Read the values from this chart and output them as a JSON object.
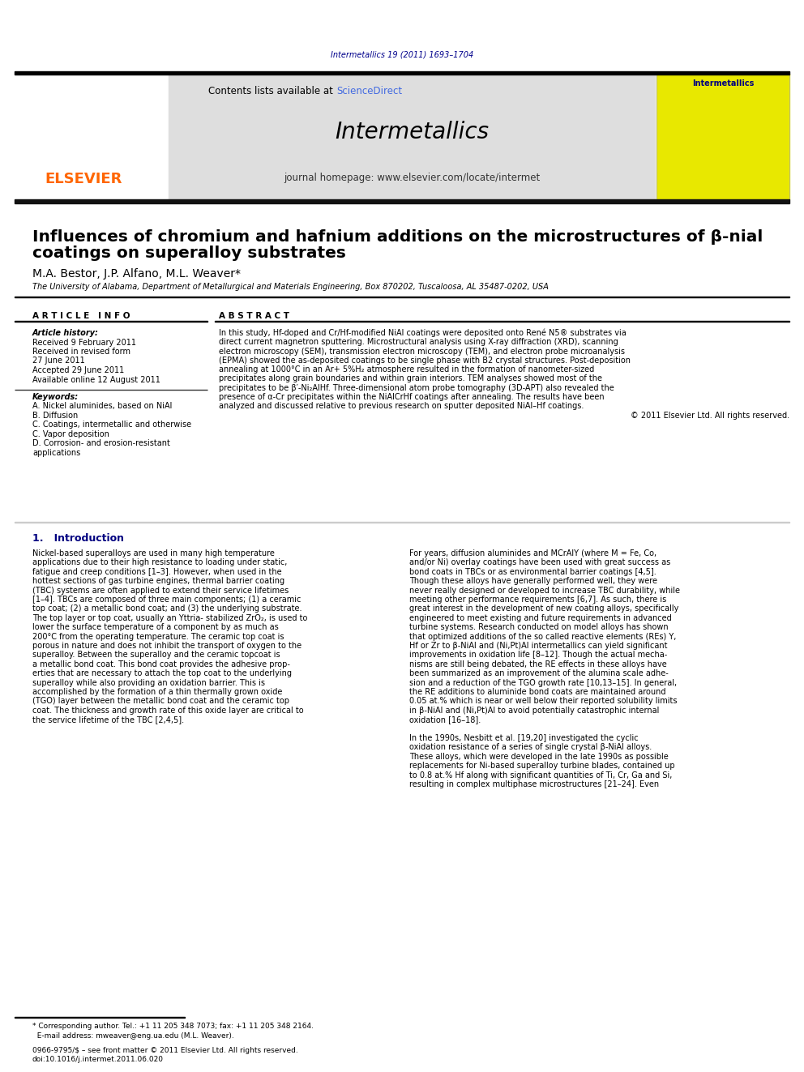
{
  "page_bg": "#ffffff",
  "doi_text": "Intermetallics 19 (2011) 1693–1704",
  "doi_color": "#00008B",
  "header_bg": "#e0e0e0",
  "contents_text": "Contents lists available at ScienceDirect",
  "sciencedirect_color": "#4169E1",
  "journal_name": "Intermetallics",
  "journal_homepage": "journal homepage: www.elsevier.com/locate/intermet",
  "elsevier_color": "#FF6600",
  "title_line1": "Influences of chromium and hafnium additions on the microstructures of β-nial",
  "title_line2": "coatings on superalloy substrates",
  "authors": "M.A. Bestor, J.P. Alfano, M.L. Weaver*",
  "affiliation": "The University of Alabama, Department of Metallurgical and Materials Engineering, Box 870202, Tuscaloosa, AL 35487-0202, USA",
  "article_info_header": "A R T I C L E   I N F O",
  "abstract_header": "A B S T R A C T",
  "article_history_label": "Article history:",
  "received_text": "Received 9 February 2011",
  "received_revised_line1": "Received in revised form",
  "received_revised_line2": "27 June 2011",
  "accepted_text": "Accepted 29 June 2011",
  "available_text": "Available online 12 August 2011",
  "keywords_label": "Keywords:",
  "keyword_a": "A. Nickel aluminides, based on NiAl",
  "keyword_b": "B. Diffusion",
  "keyword_c": "C. Coatings, intermetallic and otherwise",
  "keyword_d": "C. Vapor deposition",
  "keyword_e": "D. Corrosion- and erosion-resistant",
  "keyword_f": "applications",
  "abstract_lines": [
    "In this study, Hf-doped and Cr/Hf-modified NiAl coatings were deposited onto René N5® substrates via",
    "direct current magnetron sputtering. Microstructural analysis using X-ray diffraction (XRD), scanning",
    "electron microscopy (SEM), transmission electron microscopy (TEM), and electron probe microanalysis",
    "(EPMA) showed the as-deposited coatings to be single phase with B2 crystal structures. Post-deposition",
    "annealing at 1000°C in an Ar+ 5%H₂ atmosphere resulted in the formation of nanometer-sized",
    "precipitates along grain boundaries and within grain interiors. TEM analyses showed most of the",
    "precipitates to be β′-Ni₂AlHf. Three-dimensional atom probe tomography (3D-APT) also revealed the",
    "presence of α-Cr precipitates within the NiAlCrHf coatings after annealing. The results have been",
    "analyzed and discussed relative to previous research on sputter deposited NiAl–Hf coatings.",
    "© 2011 Elsevier Ltd. All rights reserved."
  ],
  "section1_title": "1.   Introduction",
  "col1_lines": [
    "Nickel-based superalloys are used in many high temperature",
    "applications due to their high resistance to loading under static,",
    "fatigue and creep conditions [1–3]. However, when used in the",
    "hottest sections of gas turbine engines, thermal barrier coating",
    "(TBC) systems are often applied to extend their service lifetimes",
    "[1–4]. TBCs are composed of three main components; (1) a ceramic",
    "top coat; (2) a metallic bond coat; and (3) the underlying substrate.",
    "The top layer or top coat, usually an Yttria- stabilized ZrO₂, is used to",
    "lower the surface temperature of a component by as much as",
    "200°C from the operating temperature. The ceramic top coat is",
    "porous in nature and does not inhibit the transport of oxygen to the",
    "superalloy. Between the superalloy and the ceramic topcoat is",
    "a metallic bond coat. This bond coat provides the adhesive prop-",
    "erties that are necessary to attach the top coat to the underlying",
    "superalloy while also providing an oxidation barrier. This is",
    "accomplished by the formation of a thin thermally grown oxide",
    "(TGO) layer between the metallic bond coat and the ceramic top",
    "coat. The thickness and growth rate of this oxide layer are critical to",
    "the service lifetime of the TBC [2,4,5]."
  ],
  "col2_lines": [
    "For years, diffusion aluminides and MCrAlY (where M = Fe, Co,",
    "and/or Ni) overlay coatings have been used with great success as",
    "bond coats in TBCs or as environmental barrier coatings [4,5].",
    "Though these alloys have generally performed well, they were",
    "never really designed or developed to increase TBC durability, while",
    "meeting other performance requirements [6,7]. As such, there is",
    "great interest in the development of new coating alloys, specifically",
    "engineered to meet existing and future requirements in advanced",
    "turbine systems. Research conducted on model alloys has shown",
    "that optimized additions of the so called reactive elements (REs) Y,",
    "Hf or Zr to β-NiAl and (Ni,Pt)Al intermetallics can yield significant",
    "improvements in oxidation life [8–12]. Though the actual mecha-",
    "nisms are still being debated, the RE effects in these alloys have",
    "been summarized as an improvement of the alumina scale adhe-",
    "sion and a reduction of the TGO growth rate [10,13–15]. In general,",
    "the RE additions to aluminide bond coats are maintained around",
    "0.05 at.% which is near or well below their reported solubility limits",
    "in β-NiAl and (Ni,Pt)Al to avoid potentially catastrophic internal",
    "oxidation [16–18].",
    "",
    "In the 1990s, Nesbitt et al. [19,20] investigated the cyclic",
    "oxidation resistance of a series of single crystal β-NiAl alloys.",
    "These alloys, which were developed in the late 1990s as possible",
    "replacements for Ni-based superalloy turbine blades, contained up",
    "to 0.8 at.% Hf along with significant quantities of Ti, Cr, Ga and Si,",
    "resulting in complex multiphase microstructures [21–24]. Even"
  ],
  "footnote_line1": "* Corresponding author. Tel.: +1 11 205 348 7073; fax: +1 11 205 348 2164.",
  "footnote_line2": "  E-mail address: mweaver@eng.ua.edu (M.L. Weaver).",
  "copyright_line1": "0966-9795/$ – see front matter © 2011 Elsevier Ltd. All rights reserved.",
  "copyright_line2": "doi:10.1016/j.intermet.2011.06.020"
}
